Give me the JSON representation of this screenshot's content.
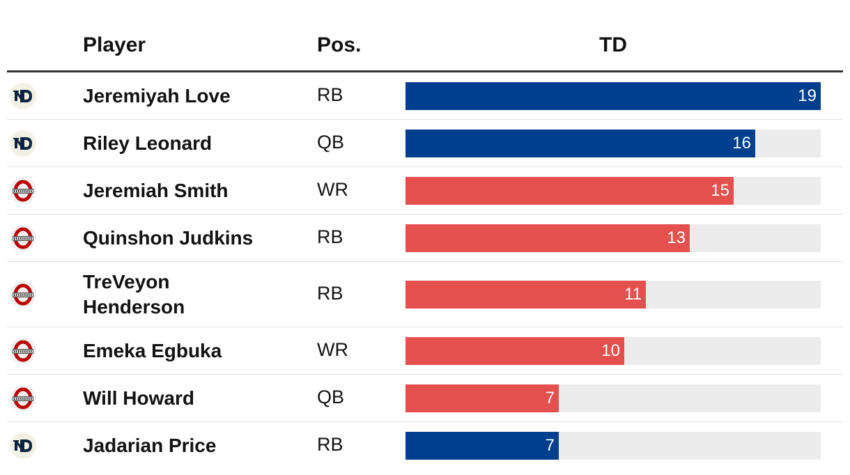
{
  "header": {
    "player": "Player",
    "pos": "Pos.",
    "td": "TD"
  },
  "colors": {
    "notre_dame": "#003e8e",
    "ohio_state": "#e3504d",
    "track": "#ececec",
    "nd_logo": "#0c2340",
    "osu_logo": "#bb0000"
  },
  "chart_data": {
    "type": "bar",
    "orientation": "horizontal",
    "title": "",
    "xlabel": "TD",
    "ylabel": "Player",
    "xlim": [
      0,
      19
    ],
    "categories": [
      "Jeremiyah Love",
      "Riley Leonard",
      "Jeremiah Smith",
      "Quinshon Judkins",
      "TreVeyon Henderson",
      "Emeka Egbuka",
      "Will Howard",
      "Jadarian Price"
    ],
    "values": [
      19,
      16,
      15,
      13,
      11,
      10,
      7,
      7
    ],
    "rows": [
      {
        "player": "Jeremiyah Love",
        "pos": "RB",
        "td": 19,
        "team": "notre_dame",
        "logo_icon": "notre-dame-logo-icon"
      },
      {
        "player": "Riley Leonard",
        "pos": "QB",
        "td": 16,
        "team": "notre_dame",
        "logo_icon": "notre-dame-logo-icon"
      },
      {
        "player": "Jeremiah Smith",
        "pos": "WR",
        "td": 15,
        "team": "ohio_state",
        "logo_icon": "ohio-state-logo-icon"
      },
      {
        "player": "Quinshon Judkins",
        "pos": "RB",
        "td": 13,
        "team": "ohio_state",
        "logo_icon": "ohio-state-logo-icon"
      },
      {
        "player": "TreVeyon Henderson",
        "pos": "RB",
        "td": 11,
        "team": "ohio_state",
        "logo_icon": "ohio-state-logo-icon"
      },
      {
        "player": "Emeka Egbuka",
        "pos": "WR",
        "td": 10,
        "team": "ohio_state",
        "logo_icon": "ohio-state-logo-icon"
      },
      {
        "player": "Will Howard",
        "pos": "QB",
        "td": 7,
        "team": "ohio_state",
        "logo_icon": "ohio-state-logo-icon"
      },
      {
        "player": "Jadarian Price",
        "pos": "RB",
        "td": 7,
        "team": "notre_dame",
        "logo_icon": "notre-dame-logo-icon"
      }
    ]
  }
}
